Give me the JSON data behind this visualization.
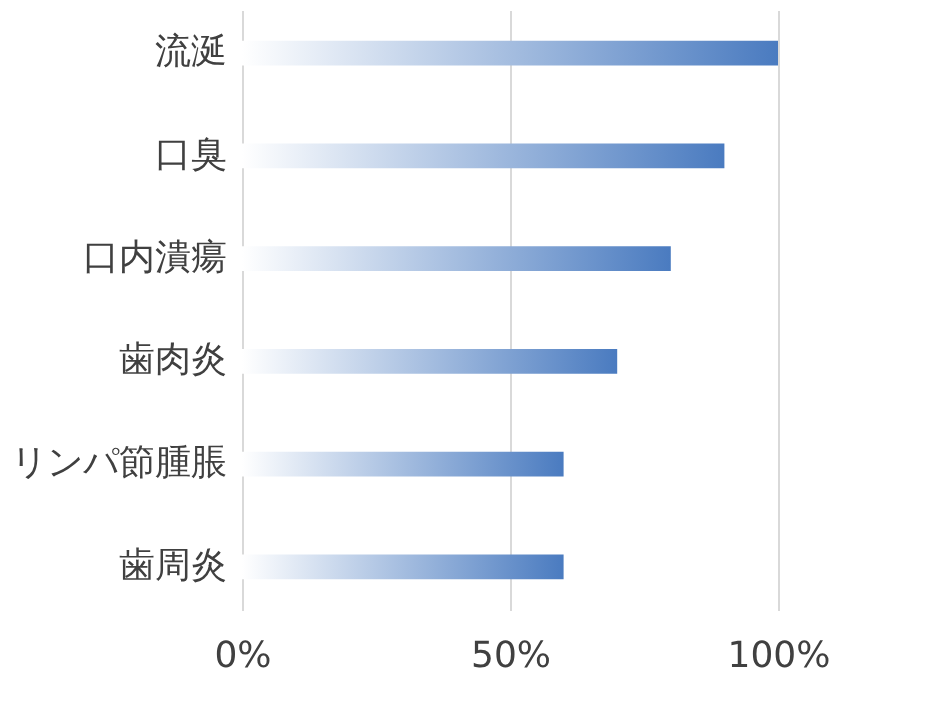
{
  "chart_data": {
    "type": "bar",
    "orientation": "horizontal",
    "categories": [
      "流涎",
      "口臭",
      "口内潰瘍",
      "歯肉炎",
      "リンパ節腫脹",
      "歯周炎"
    ],
    "values": [
      100,
      90,
      80,
      70,
      60,
      60
    ],
    "color": "#4a7bc0",
    "xlim": [
      0,
      100
    ],
    "xticks": [
      {
        "value": 0,
        "label": "0%"
      },
      {
        "value": 50,
        "label": "50%"
      },
      {
        "value": 100,
        "label": "100%"
      }
    ],
    "grid": "x"
  }
}
